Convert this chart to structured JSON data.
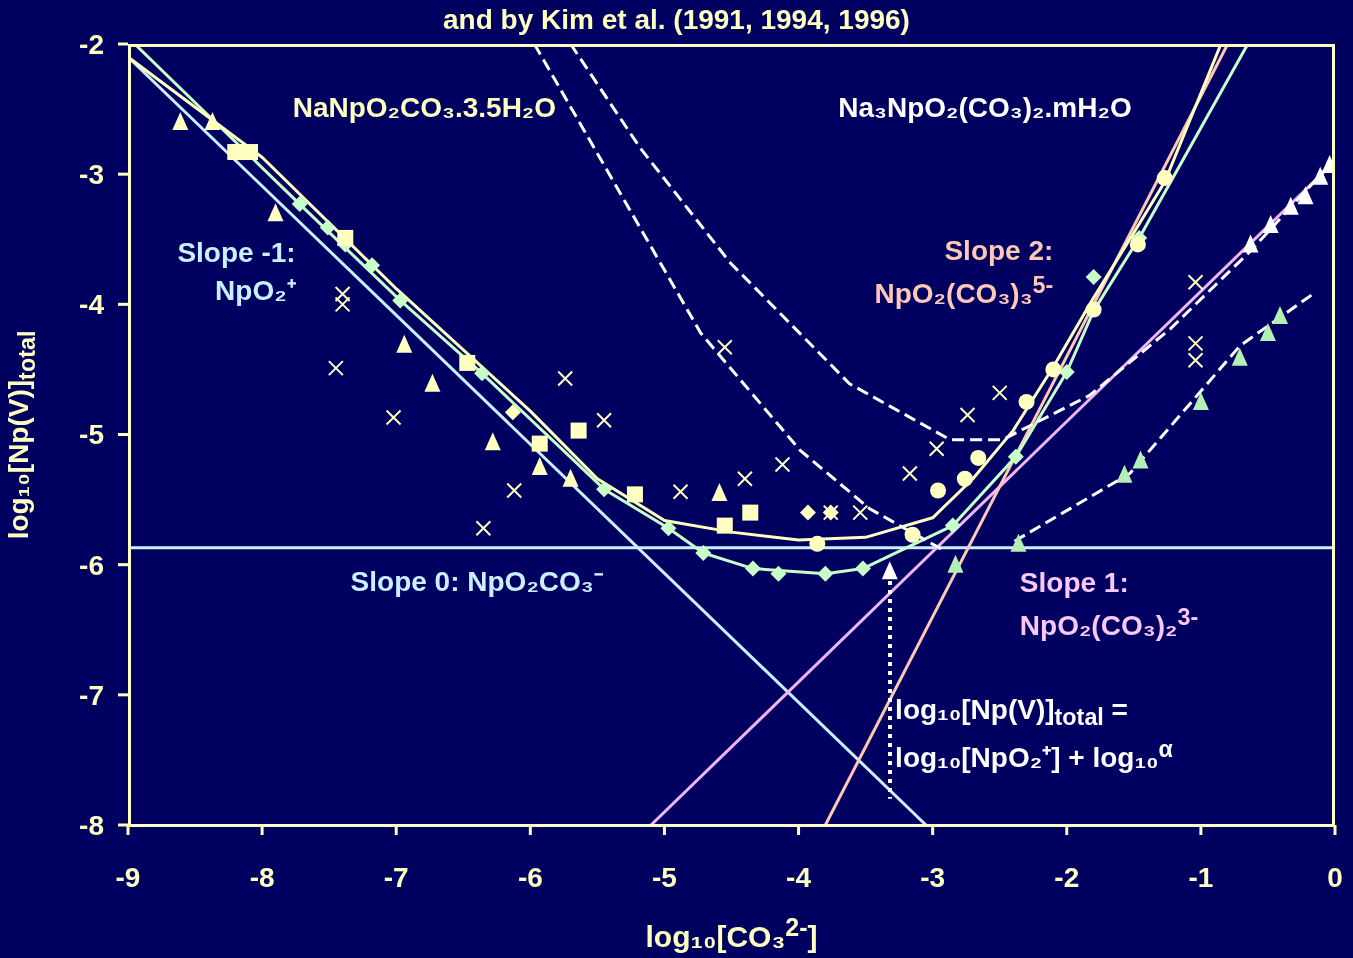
{
  "chart_data": {
    "type": "scatter",
    "title": "and by Kim et al. (1991, 1994, 1996)",
    "xlabel": "log₁₀[CO₃$^{2-}$]",
    "ylabel": "log₁₀[Np(V)]$_{total}$",
    "xlim": [
      -9,
      0
    ],
    "ylim": [
      -8,
      -2
    ],
    "xticks": [
      -9,
      -8,
      -7,
      -6,
      -5,
      -4,
      -3,
      -2,
      -1,
      0
    ],
    "yticks": [
      -8,
      -7,
      -6,
      -5,
      -4,
      -3,
      -2
    ],
    "grid": false,
    "annotations": [
      "NaNpO₂CO₃.3.5H₂O",
      "Na₃NpO₂(CO₃)₂.mH₂O",
      "Slope -1:\nNpO₂⁺",
      "Slope 0: NpO₂CO₃⁻",
      "Slope 1:\nNpO₂(CO₃)₂$^{3-}$",
      "Slope 2:\nNpO₂(CO₃)₃$^{5-}$",
      {
        "text": "log₁₀[Np(V)]$_{total}$ =\nlog₁₀[NpO₂⁺] + log₁₀$^{α}$",
        "x": -3.32,
        "y": -6.05
      }
    ],
    "series": [
      {
        "type": "line",
        "color": "#c8f0ff",
        "line_style": "solid",
        "x": [
          -9,
          -3.05
        ],
        "values": [
          -2.1,
          -8
        ]
      },
      {
        "type": "line",
        "color": "#c8f0ff",
        "line_style": "solid",
        "x": [
          -9,
          0
        ],
        "values": [
          -5.87,
          -5.87
        ]
      },
      {
        "type": "line",
        "color": "#f0b4f0",
        "line_style": "solid",
        "x": [
          -5.1,
          0
        ],
        "values": [
          -8,
          -2.9
        ]
      },
      {
        "type": "line",
        "color": "#ffc8b4",
        "line_style": "solid",
        "x": [
          -3.8,
          -0.8
        ],
        "values": [
          -8,
          -2
        ]
      },
      {
        "type": "line",
        "color": "#c8ffc8",
        "line_style": "solid",
        "x": [
          -8.95,
          -7.72,
          -6.97,
          -6.36,
          -5.45,
          -4.97,
          -4.71,
          -4.34,
          -3.8,
          -3.52,
          -2.85,
          -2.38,
          -2.0,
          -1.8,
          -1.46,
          -0.65
        ],
        "values": [
          -2,
          -3.23,
          -3.97,
          -4.53,
          -5.42,
          -5.72,
          -5.91,
          -6.03,
          -6.07,
          -6.03,
          -5.7,
          -5.17,
          -4.52,
          -4.05,
          -3.49,
          -2
        ]
      },
      {
        "type": "line",
        "color": "#ffffc0",
        "line_style": "solid",
        "x": [
          -9,
          -8,
          -7,
          -6,
          -5.5,
          -5,
          -4.5,
          -4,
          -3.5,
          -3,
          -2.7,
          -2.4,
          -2.1,
          -1.8,
          -1.5,
          -1.27,
          -0.85
        ],
        "values": [
          -2.1,
          -2.87,
          -3.88,
          -4.82,
          -5.34,
          -5.66,
          -5.75,
          -5.81,
          -5.79,
          -5.64,
          -5.34,
          -4.97,
          -4.48,
          -3.95,
          -3.45,
          -3.06,
          -2
        ]
      },
      {
        "type": "line",
        "color": "#ffffff",
        "line_style": "dashed",
        "x": [
          -5.7,
          -5.18,
          -4.51,
          -3.62,
          -2.87,
          -2.48,
          -1.83,
          -1.23,
          -0.63,
          -0.04
        ],
        "values": [
          -2,
          -2.8,
          -3.68,
          -4.61,
          -5.04,
          -5.04,
          -4.7,
          -4.19,
          -3.59,
          -2.93
        ]
      },
      {
        "type": "line",
        "color": "#ffffff",
        "line_style": "dashed",
        "x": [
          -5.97,
          -4.73,
          -3.99,
          -3.47,
          -2.9
        ],
        "values": [
          -2,
          -4.22,
          -5.12,
          -5.57,
          -5.9
        ]
      },
      {
        "type": "line",
        "color": "#ffffff",
        "line_style": "dashed",
        "x": [
          -2.39,
          -1.53,
          -0.71,
          -0.15
        ],
        "values": [
          -5.82,
          -5.3,
          -4.32,
          -3.91
        ]
      },
      {
        "color": "#c8ffc8",
        "marker": "diamond",
        "x": [
          -7.72,
          -7.51,
          -7.38,
          -7.18,
          -6.97,
          -6.36,
          -5.45,
          -4.97,
          -4.71,
          -4.34,
          -4.15,
          -3.8,
          -3.52,
          -2.85,
          -2.38,
          -2.0,
          -1.8,
          -1.46
        ],
        "values": [
          -3.23,
          -3.41,
          -3.54,
          -3.7,
          -3.97,
          -4.53,
          -5.42,
          -5.72,
          -5.91,
          -6.03,
          -6.07,
          -6.07,
          -6.03,
          -5.7,
          -5.17,
          -4.52,
          -3.79,
          -3.49
        ]
      },
      {
        "color": "#b4f0b4",
        "marker": "triangle",
        "x": [
          -2.83,
          -2.36,
          -1.57,
          -1.45,
          -1.0,
          -0.71,
          -0.5,
          -0.41
        ],
        "values": [
          -6.0,
          -5.84,
          -5.31,
          -5.2,
          -4.75,
          -4.41,
          -4.22,
          -4.09
        ]
      },
      {
        "color": "#ffffff",
        "marker": "triangle",
        "x": [
          -3.32,
          -0.63,
          -0.48,
          -0.33,
          -0.22,
          -0.11,
          -0.04
        ],
        "values": [
          -6.05,
          -3.54,
          -3.39,
          -3.25,
          -3.17,
          -3.02,
          -2.93
        ]
      },
      {
        "color": "#ffffc0",
        "marker": "square",
        "x": [
          -8.2,
          -8.09,
          -7.38,
          -6.47,
          -5.64,
          -5.93,
          -5.22,
          -4.36,
          -4.55
        ],
        "values": [
          -2.83,
          -2.83,
          -3.49,
          -4.45,
          -4.97,
          -5.07,
          -5.46,
          -5.6,
          -5.7
        ]
      },
      {
        "color": "#ffffc0",
        "marker": "circle",
        "x": [
          -2.66,
          -3.15,
          -2.1,
          -2.96,
          -2.76,
          -2.3,
          -1.8,
          -1.47,
          -1.27,
          -3.86
        ],
        "values": [
          -5.18,
          -5.77,
          -4.5,
          -5.43,
          -5.34,
          -4.75,
          -4.04,
          -3.54,
          -3.03,
          -5.84
        ]
      },
      {
        "color": "#ffffc0",
        "marker": "triangle",
        "x": [
          -8.61,
          -8.37,
          -7.9,
          -6.94,
          -6.73,
          -6.28,
          -5.93,
          -5.7,
          -4.59
        ],
        "values": [
          -2.6,
          -2.6,
          -3.3,
          -4.31,
          -4.61,
          -5.06,
          -5.25,
          -5.34,
          -5.45
        ]
      },
      {
        "color": "#ffffc0",
        "marker": "cross",
        "x": [
          -7.02,
          -6.35,
          -6.12,
          -5.74,
          -5.45,
          -4.55,
          -4.12,
          -3.17,
          -2.97,
          -2.74,
          -2.5,
          -1.04,
          -1.04,
          -1.04,
          -3.76,
          -3.54,
          -7.45,
          -7.4,
          -7.4,
          -4.4,
          -4.88
        ],
        "values": [
          -4.87,
          -5.72,
          -5.43,
          -4.57,
          -4.89,
          -4.33,
          -5.23,
          -5.3,
          -5.11,
          -4.85,
          -4.68,
          -3.83,
          -4.3,
          -4.43,
          -5.6,
          -5.6,
          -4.49,
          -3.92,
          -4.0,
          -5.34,
          -5.44
        ]
      },
      {
        "color": "#ffffc0",
        "marker": "diamond",
        "x": [
          -6.13,
          -3.93,
          -3.76
        ],
        "values": [
          -4.83,
          -5.6,
          -5.6
        ]
      }
    ]
  }
}
